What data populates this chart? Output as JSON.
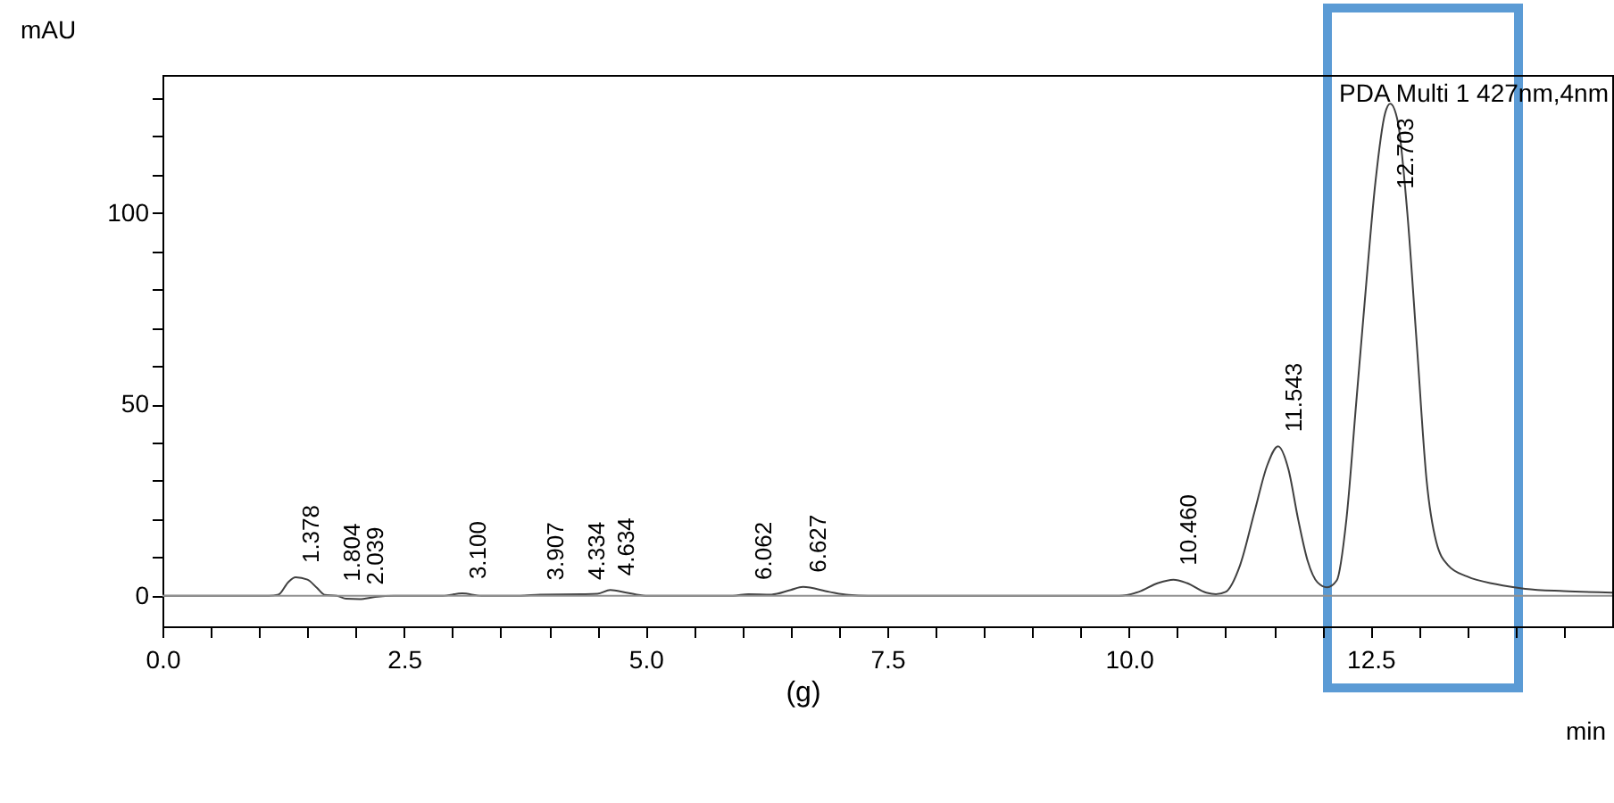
{
  "chart_data": {
    "type": "line",
    "xlabel": "min",
    "ylabel": "mAU",
    "xlim": [
      0,
      15
    ],
    "ylim": [
      -8,
      136
    ],
    "xticks": [
      {
        "value": 0,
        "label": "0.0"
      },
      {
        "value": 0.5,
        "label": null
      },
      {
        "value": 1,
        "label": null
      },
      {
        "value": 1.5,
        "label": null
      },
      {
        "value": 2,
        "label": null
      },
      2.5,
      {
        "value": 3,
        "label": null
      },
      {
        "value": 3.5,
        "label": null
      },
      {
        "value": 4,
        "label": null
      },
      {
        "value": 4.5,
        "label": null
      },
      {
        "value": 5,
        "label": "5.0"
      },
      {
        "value": 5.5,
        "label": null
      },
      {
        "value": 6,
        "label": null
      },
      {
        "value": 6.5,
        "label": null
      },
      {
        "value": 7,
        "label": null
      },
      7.5,
      {
        "value": 8,
        "label": null
      },
      {
        "value": 8.5,
        "label": null
      },
      {
        "value": 9,
        "label": null
      },
      {
        "value": 9.5,
        "label": null
      },
      {
        "value": 10,
        "label": "10.0"
      },
      {
        "value": 10.5,
        "label": null
      },
      {
        "value": 11,
        "label": null
      },
      {
        "value": 11.5,
        "label": null
      },
      {
        "value": 12,
        "label": null
      },
      12.5,
      {
        "value": 13,
        "label": null
      },
      {
        "value": 13.5,
        "label": null
      },
      {
        "value": 14,
        "label": null
      },
      {
        "value": 14.5,
        "label": null
      }
    ],
    "yticks": [
      0,
      {
        "value": 10,
        "label": null
      },
      {
        "value": 20,
        "label": null
      },
      {
        "value": 30,
        "label": null
      },
      {
        "value": 40,
        "label": null
      },
      50,
      {
        "value": 60,
        "label": null
      },
      {
        "value": 70,
        "label": null
      },
      {
        "value": 80,
        "label": null
      },
      {
        "value": 90,
        "label": null
      },
      100,
      {
        "value": 110,
        "label": null
      },
      {
        "value": 120,
        "label": null
      },
      {
        "value": 130,
        "label": null
      }
    ],
    "grid": false,
    "legend": false,
    "marker": "none",
    "line_style": "solid",
    "x": [
      0,
      1.1,
      1.2,
      1.3,
      1.378,
      1.5,
      1.6,
      1.68,
      1.804,
      1.9,
      2.039,
      2.2,
      2.4,
      2.9,
      3.1,
      3.3,
      3.7,
      3.907,
      4.334,
      4.5,
      4.634,
      4.8,
      5.0,
      5.9,
      6.062,
      6.3,
      6.5,
      6.627,
      6.9,
      7.1,
      7.3,
      9.9,
      10.1,
      10.3,
      10.46,
      10.6,
      10.8,
      10.9,
      11.0,
      11.15,
      11.3,
      11.43,
      11.543,
      11.65,
      11.75,
      11.85,
      11.95,
      12.05,
      12.15,
      12.25,
      12.35,
      12.45,
      12.55,
      12.65,
      12.703,
      12.78,
      12.88,
      12.98,
      13.08,
      13.18,
      13.3,
      13.5,
      13.8,
      14.1,
      14.5,
      15
    ],
    "series": [
      {
        "color": "#404040",
        "values": [
          0,
          0,
          0.3,
          3.5,
          4.8,
          4.2,
          2,
          0.2,
          0,
          -0.8,
          -0.9,
          -0.3,
          0,
          0,
          0.6,
          0,
          0,
          0.3,
          0.4,
          0.5,
          1.5,
          0.8,
          0,
          0,
          0.4,
          0.3,
          1.5,
          2.3,
          1,
          0.2,
          0,
          0,
          1,
          3.3,
          4.2,
          3.3,
          0.8,
          0.4,
          1,
          8,
          22,
          34,
          39,
          33,
          20,
          9,
          3.5,
          2.2,
          4,
          20,
          50,
          80,
          108,
          126,
          128.5,
          124,
          100,
          65,
          30,
          14,
          8,
          5,
          3,
          1.8,
          1.2,
          0.8
        ]
      }
    ],
    "ref_lines": [
      {
        "axis": "y",
        "value": 0,
        "color": "#909090"
      }
    ],
    "annotations": [
      "PDA Multi 1 427nm,4nm",
      "(g)",
      {
        "text": "1.378",
        "x": 1.378,
        "y": 4.8
      },
      {
        "text": "1.804",
        "x": 1.804,
        "y": 0
      },
      {
        "text": "2.039",
        "x": 2.039,
        "y": -0.9
      },
      {
        "text": "3.100",
        "x": 3.1,
        "y": 0.6
      },
      {
        "text": "3.907",
        "x": 3.907,
        "y": 0.3
      },
      {
        "text": "4.334",
        "x": 4.334,
        "y": 0.4
      },
      {
        "text": "4.634",
        "x": 4.634,
        "y": 1.5
      },
      {
        "text": "6.062",
        "x": 6.062,
        "y": 0.4
      },
      {
        "text": "6.627",
        "x": 6.627,
        "y": 2.3
      },
      {
        "text": "10.460",
        "x": 10.46,
        "y": 4.2
      },
      {
        "text": "11.543",
        "x": 11.543,
        "y": 39
      },
      {
        "text": "12.703",
        "x": 12.703,
        "y": 128.5
      }
    ]
  }
}
